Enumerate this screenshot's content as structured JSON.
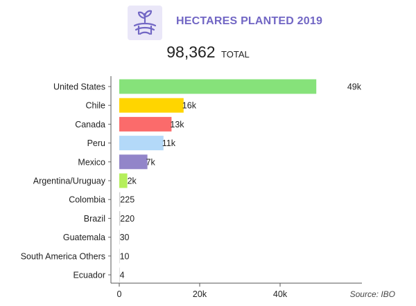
{
  "header": {
    "icon": "plant-sprout-icon",
    "title": "HECTARES PLANTED 2019",
    "title_color": "#7166c4"
  },
  "total": {
    "value": "98,362",
    "label": "TOTAL"
  },
  "source": "Source: IBO",
  "chart_data": {
    "type": "bar",
    "orientation": "horizontal",
    "title": "HECTARES PLANTED 2019",
    "xlim": [
      0,
      60000
    ],
    "x_ticks": [
      {
        "value": 0,
        "label": "0"
      },
      {
        "value": 20000,
        "label": "20k"
      },
      {
        "value": 40000,
        "label": "40k"
      }
    ],
    "grid": false,
    "categories": [
      "United States",
      "Chile",
      "Canada",
      "Peru",
      "Mexico",
      "Argentina/Uruguay",
      "Colombia",
      "Brazil",
      "Guatemala",
      "South America Others",
      "Ecuador"
    ],
    "values": [
      49000,
      16000,
      13000,
      11000,
      7000,
      2000,
      225,
      220,
      30,
      10,
      4
    ],
    "value_labels": [
      "49k",
      "16k",
      "13k",
      "11k",
      "7k",
      "2k",
      "225",
      "220",
      "30",
      "10",
      "4"
    ],
    "colors": [
      "#86e27a",
      "#ffd500",
      "#fb6b6b",
      "#b3d9f9",
      "#9285c9",
      "#b5ef5b",
      "#cccccc",
      "#cccccc",
      "#cccccc",
      "#cccccc",
      "#cccccc"
    ]
  }
}
